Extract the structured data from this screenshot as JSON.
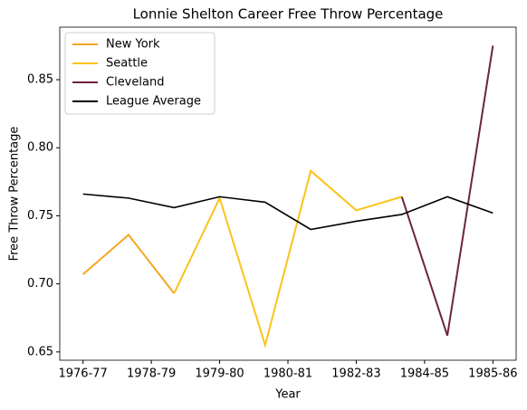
{
  "chart_data": {
    "type": "line",
    "title": "Lonnie Shelton Career Free Throw Percentage",
    "xlabel": "Year",
    "ylabel": "Free Throw Percentage",
    "x": [
      0,
      1,
      2,
      3,
      4,
      5,
      6,
      7,
      8,
      9
    ],
    "xlim": [
      -0.51,
      9.51
    ],
    "xticks": [
      {
        "value": 0,
        "label": "1976-77"
      },
      {
        "value": 1.5,
        "label": "1978-79"
      },
      {
        "value": 3,
        "label": "1979-80"
      },
      {
        "value": 4.5,
        "label": "1980-81"
      },
      {
        "value": 6,
        "label": "1982-83"
      },
      {
        "value": 7.5,
        "label": "1984-85"
      },
      {
        "value": 9,
        "label": "1985-86"
      }
    ],
    "ylim": [
      0.6439,
      0.8886
    ],
    "yticks": [
      0.65,
      {
        "value": 0.7,
        "label": "0.70"
      },
      0.75,
      {
        "value": 0.8,
        "label": "0.80"
      },
      0.85
    ],
    "legend": "upper left",
    "series": [
      {
        "name": "New York",
        "color": "#f5a623",
        "values": [
          0.707,
          0.736,
          0.693,
          null,
          null,
          null,
          null,
          null,
          null,
          null
        ]
      },
      {
        "name": "Seattle",
        "color": "#fbc31b",
        "values": [
          null,
          null,
          0.693,
          0.763,
          0.655,
          0.783,
          0.754,
          0.764,
          null,
          null
        ]
      },
      {
        "name": "Cleveland",
        "color": "#6b2540",
        "values": [
          null,
          null,
          null,
          null,
          null,
          null,
          null,
          0.764,
          0.662,
          0.875
        ]
      },
      {
        "name": "League Average",
        "color": "#000000",
        "values": [
          0.766,
          0.763,
          0.756,
          0.764,
          0.76,
          0.74,
          0.746,
          0.751,
          0.764,
          0.752
        ]
      }
    ]
  }
}
